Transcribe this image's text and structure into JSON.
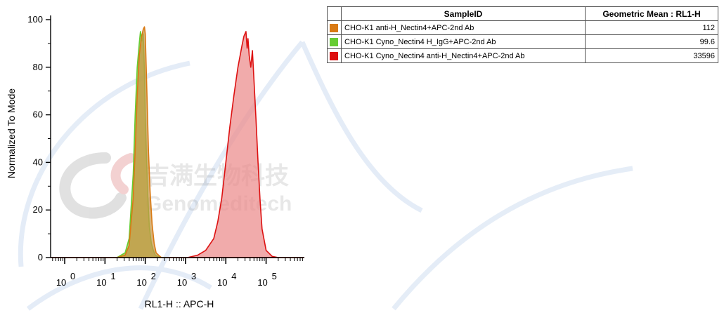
{
  "watermark": {
    "text_cn": "吉满生物科技",
    "text_en": "Genomeditech"
  },
  "table": {
    "headers": [
      "SampleID",
      "Geometric Mean : RL1-H"
    ],
    "rows": [
      {
        "color": "#d97a14",
        "sample": "CHO-K1 anti-H_Nectin4+APC-2nd Ab",
        "value": "112"
      },
      {
        "color": "#66cc33",
        "sample": "CHO-K1 Cyno_Nectin4 H_IgG+APC-2nd Ab",
        "value": "99.6"
      },
      {
        "color": "#dd1111",
        "sample": "CHO-K1 Cyno_Nectin4 anti-H_Nectin4+APC-2nd Ab",
        "value": "33596"
      }
    ]
  },
  "chart_data": {
    "type": "area",
    "xlabel": "RL1-H :: APC-H",
    "ylabel": "Normalized To Mode",
    "xscale": "log",
    "xlim_log10": [
      -0.35,
      5.95
    ],
    "ylim": [
      0,
      100
    ],
    "yticks": [
      0,
      20,
      40,
      60,
      80,
      100
    ],
    "xticks": [
      {
        "base": "10",
        "exp": "0"
      },
      {
        "base": "10",
        "exp": "1"
      },
      {
        "base": "10",
        "exp": "2"
      },
      {
        "base": "10",
        "exp": "3"
      },
      {
        "base": "10",
        "exp": "4"
      },
      {
        "base": "10",
        "exp": "5"
      }
    ],
    "series": [
      {
        "name": "CHO-K1 Cyno_Nectin4 H_IgG+APC-2nd Ab",
        "color": "#66cc33",
        "fill": "#8fbf3a",
        "x_log10": [
          1.3,
          1.5,
          1.6,
          1.7,
          1.75,
          1.8,
          1.85,
          1.88,
          1.92,
          1.95,
          1.98,
          2.0,
          2.03,
          2.06,
          2.1,
          2.15,
          2.2,
          2.25,
          2.3,
          2.4,
          2.55
        ],
        "y": [
          0,
          2,
          8,
          35,
          60,
          80,
          90,
          95,
          91,
          94,
          78,
          60,
          42,
          27,
          13,
          6,
          3,
          1,
          0.5,
          0,
          0
        ]
      },
      {
        "name": "CHO-K1 anti-H_Nectin4+APC-2nd Ab",
        "color": "#d97a14",
        "fill": "#c99645",
        "x_log10": [
          1.3,
          1.5,
          1.6,
          1.7,
          1.75,
          1.8,
          1.85,
          1.9,
          1.95,
          1.98,
          2.0,
          2.02,
          2.05,
          2.08,
          2.12,
          2.17,
          2.22,
          2.27,
          2.33,
          2.4,
          2.55
        ],
        "y": [
          0,
          1,
          5,
          25,
          45,
          68,
          85,
          92,
          96,
          97,
          94,
          82,
          64,
          45,
          28,
          14,
          6,
          2,
          1,
          0,
          0
        ]
      },
      {
        "name": "CHO-K1 Cyno_Nectin4 anti-H_Nectin4+APC-2nd Ab",
        "color": "#dd1111",
        "fill": "#eb8a8a",
        "x_log10": [
          3.05,
          3.3,
          3.5,
          3.7,
          3.8,
          3.9,
          4.0,
          4.1,
          4.2,
          4.3,
          4.4,
          4.45,
          4.5,
          4.53,
          4.55,
          4.58,
          4.62,
          4.66,
          4.7,
          4.75,
          4.8,
          4.85,
          4.9,
          5.0,
          5.15,
          5.3
        ],
        "y": [
          0,
          1,
          3,
          8,
          15,
          25,
          40,
          55,
          68,
          80,
          89,
          93,
          95,
          88,
          92,
          85,
          80,
          87,
          74,
          58,
          40,
          24,
          12,
          3,
          0.5,
          0
        ]
      }
    ]
  }
}
